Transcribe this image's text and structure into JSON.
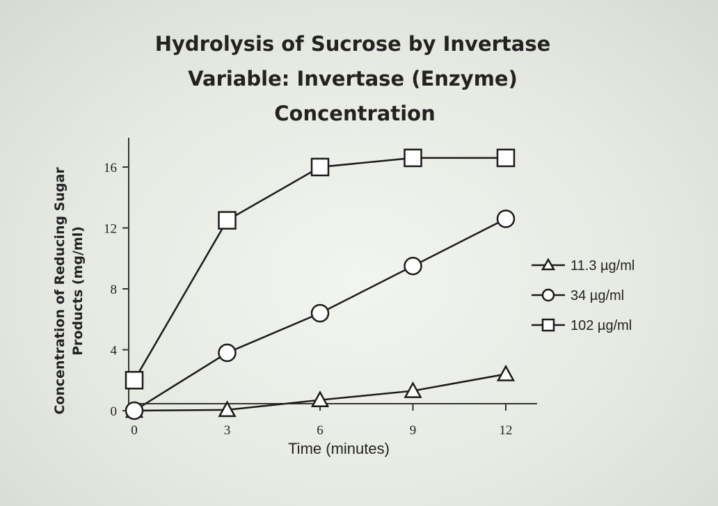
{
  "chart_data": {
    "type": "line",
    "title_lines": [
      "Hydrolysis of Sucrose by Invertase",
      "Variable: Invertase (Enzyme)",
      "Concentration"
    ],
    "xlabel": "Time (minutes)",
    "ylabel_lines": [
      "Concentration of Reducing Sugar",
      "Products (mg/ml)"
    ],
    "x": [
      0,
      3,
      6,
      9,
      12
    ],
    "x_ticks": [
      0,
      3,
      6,
      9,
      12
    ],
    "y_ticks": [
      0,
      4,
      8,
      12,
      16
    ],
    "xlim": [
      0,
      13.2
    ],
    "ylim": [
      0,
      17.8
    ],
    "grid": false,
    "legend_position": "right",
    "series": [
      {
        "name": "11.3 µg/ml",
        "marker": "triangle",
        "values": [
          0,
          0.05,
          0.7,
          1.3,
          2.4
        ]
      },
      {
        "name": "34 µg/ml",
        "marker": "circle",
        "values": [
          0,
          3.8,
          6.4,
          9.5,
          12.6
        ]
      },
      {
        "name": "102 µg/ml",
        "marker": "square",
        "values": [
          2,
          12.5,
          16,
          16.6,
          16.6
        ]
      }
    ],
    "colors": {
      "line": "#1a1a1a",
      "marker_fill": "#ffffff"
    }
  }
}
